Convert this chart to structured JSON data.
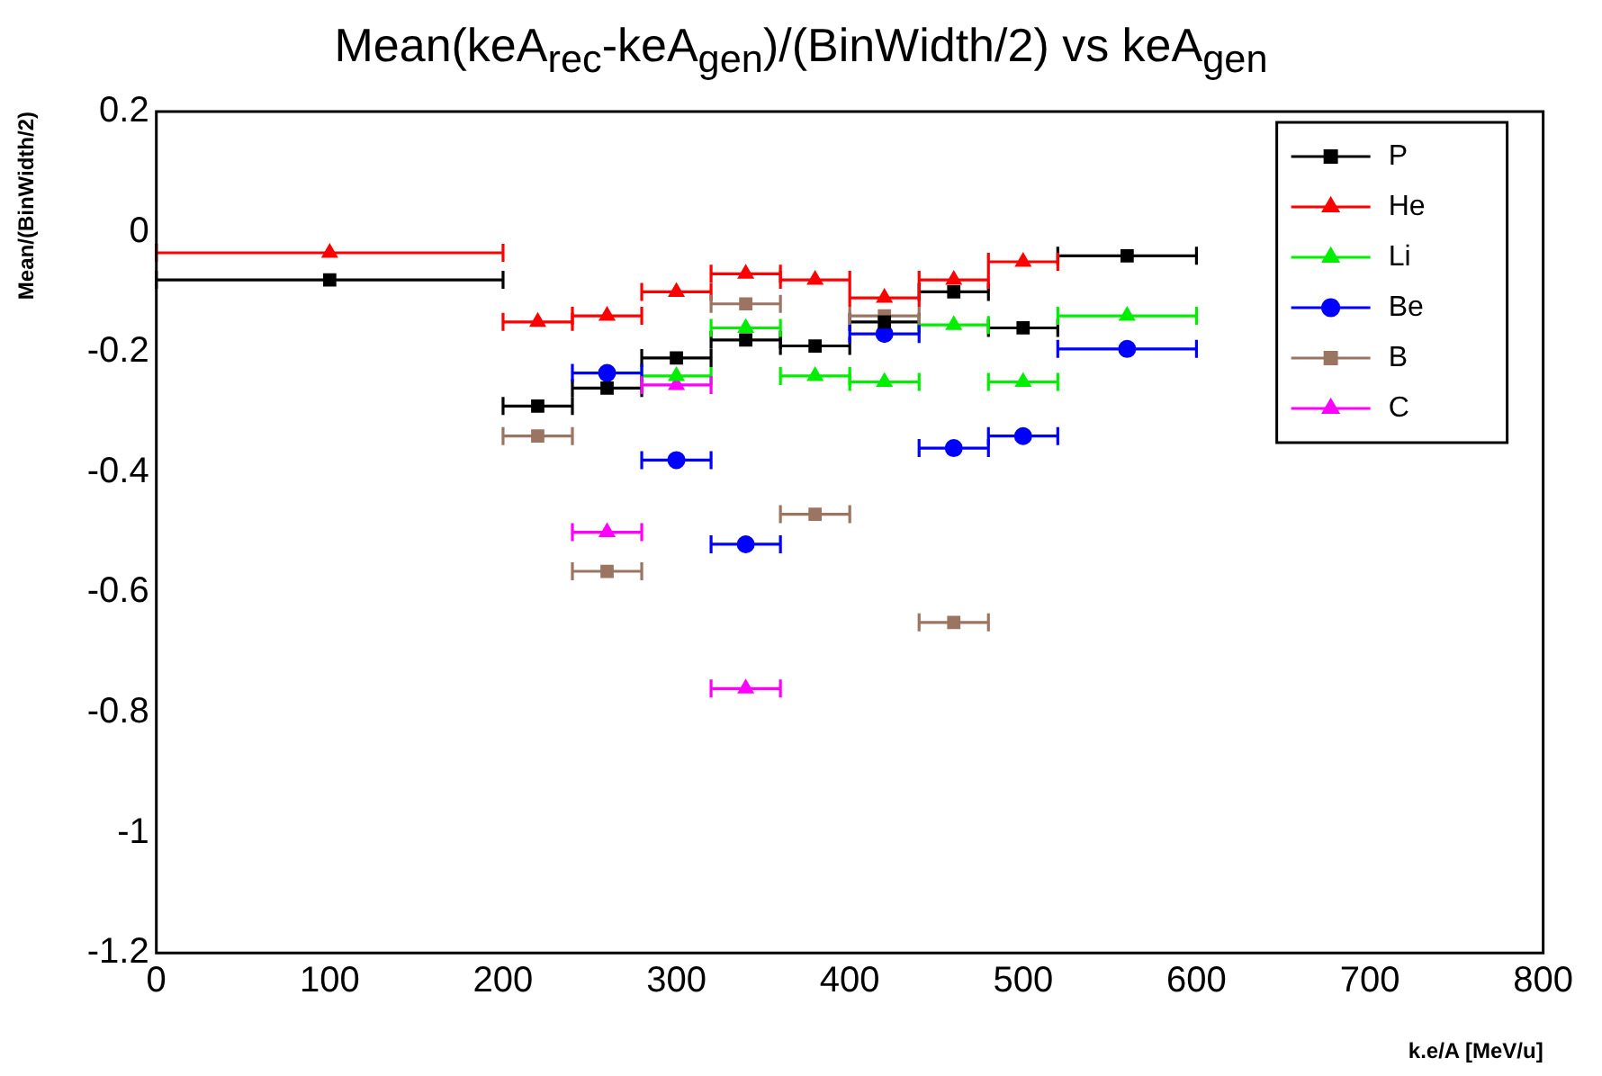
{
  "chart_data": {
    "type": "scatter",
    "title": "Mean(keA$_{rec}$-keA$_{gen}$)/(BinWidth/2) vs keA$_{gen}$",
    "xlabel": "k.e/A [MeV/u]",
    "ylabel": "Mean/(BinWidth/2)",
    "xlim": [
      0,
      800
    ],
    "xticks": [
      0,
      100,
      200,
      300,
      400,
      500,
      600,
      700,
      800
    ],
    "ylim": [
      -1.2,
      0.2
    ],
    "yticks": [
      -1.2,
      -1,
      -0.8,
      -0.6,
      -0.4,
      -0.2,
      0,
      0.2
    ],
    "grid": false,
    "legend": "top right",
    "series": [
      {
        "name": "P",
        "color": "#000000",
        "marker": "square",
        "x": [
          100,
          220,
          260,
          300,
          340,
          380,
          420,
          460,
          500,
          560
        ],
        "values": [
          -0.08,
          -0.29,
          -0.26,
          -0.21,
          -0.18,
          -0.19,
          -0.15,
          -0.1,
          -0.16,
          -0.04
        ],
        "xerrors": [
          100,
          20,
          20,
          20,
          20,
          20,
          20,
          20,
          20,
          40
        ]
      },
      {
        "name": "He",
        "color": "#ff0000",
        "marker": "triangle",
        "x": [
          100,
          220,
          260,
          300,
          340,
          380,
          420,
          460,
          500
        ],
        "values": [
          -0.035,
          -0.15,
          -0.14,
          -0.1,
          -0.07,
          -0.08,
          -0.11,
          -0.08,
          -0.05
        ],
        "xerrors": [
          100,
          20,
          20,
          20,
          20,
          20,
          20,
          20,
          20
        ]
      },
      {
        "name": "Li",
        "color": "#00ee00",
        "marker": "triangle",
        "x": [
          300,
          340,
          380,
          420,
          460,
          500,
          560
        ],
        "values": [
          -0.24,
          -0.16,
          -0.24,
          -0.25,
          -0.155,
          -0.25,
          -0.14
        ],
        "xerrors": [
          20,
          20,
          20,
          20,
          20,
          20,
          40
        ]
      },
      {
        "name": "Be",
        "color": "#0000ff",
        "marker": "circle",
        "x": [
          260,
          300,
          340,
          420,
          460,
          500,
          560
        ],
        "values": [
          -0.235,
          -0.38,
          -0.52,
          -0.17,
          -0.36,
          -0.34,
          -0.195
        ],
        "xerrors": [
          20,
          20,
          20,
          20,
          20,
          20,
          40
        ]
      },
      {
        "name": "B",
        "color": "#9c7462",
        "marker": "square",
        "x": [
          220,
          260,
          340,
          380,
          420,
          460
        ],
        "values": [
          -0.34,
          -0.565,
          -0.12,
          -0.47,
          -0.14,
          -0.65
        ],
        "xerrors": [
          20,
          20,
          20,
          20,
          20,
          20
        ]
      },
      {
        "name": "C",
        "color": "#ff00ff",
        "marker": "triangle",
        "x": [
          260,
          300,
          340
        ],
        "values": [
          -0.5,
          -0.255,
          -0.76
        ],
        "xerrors": [
          20,
          20,
          20
        ]
      }
    ]
  }
}
